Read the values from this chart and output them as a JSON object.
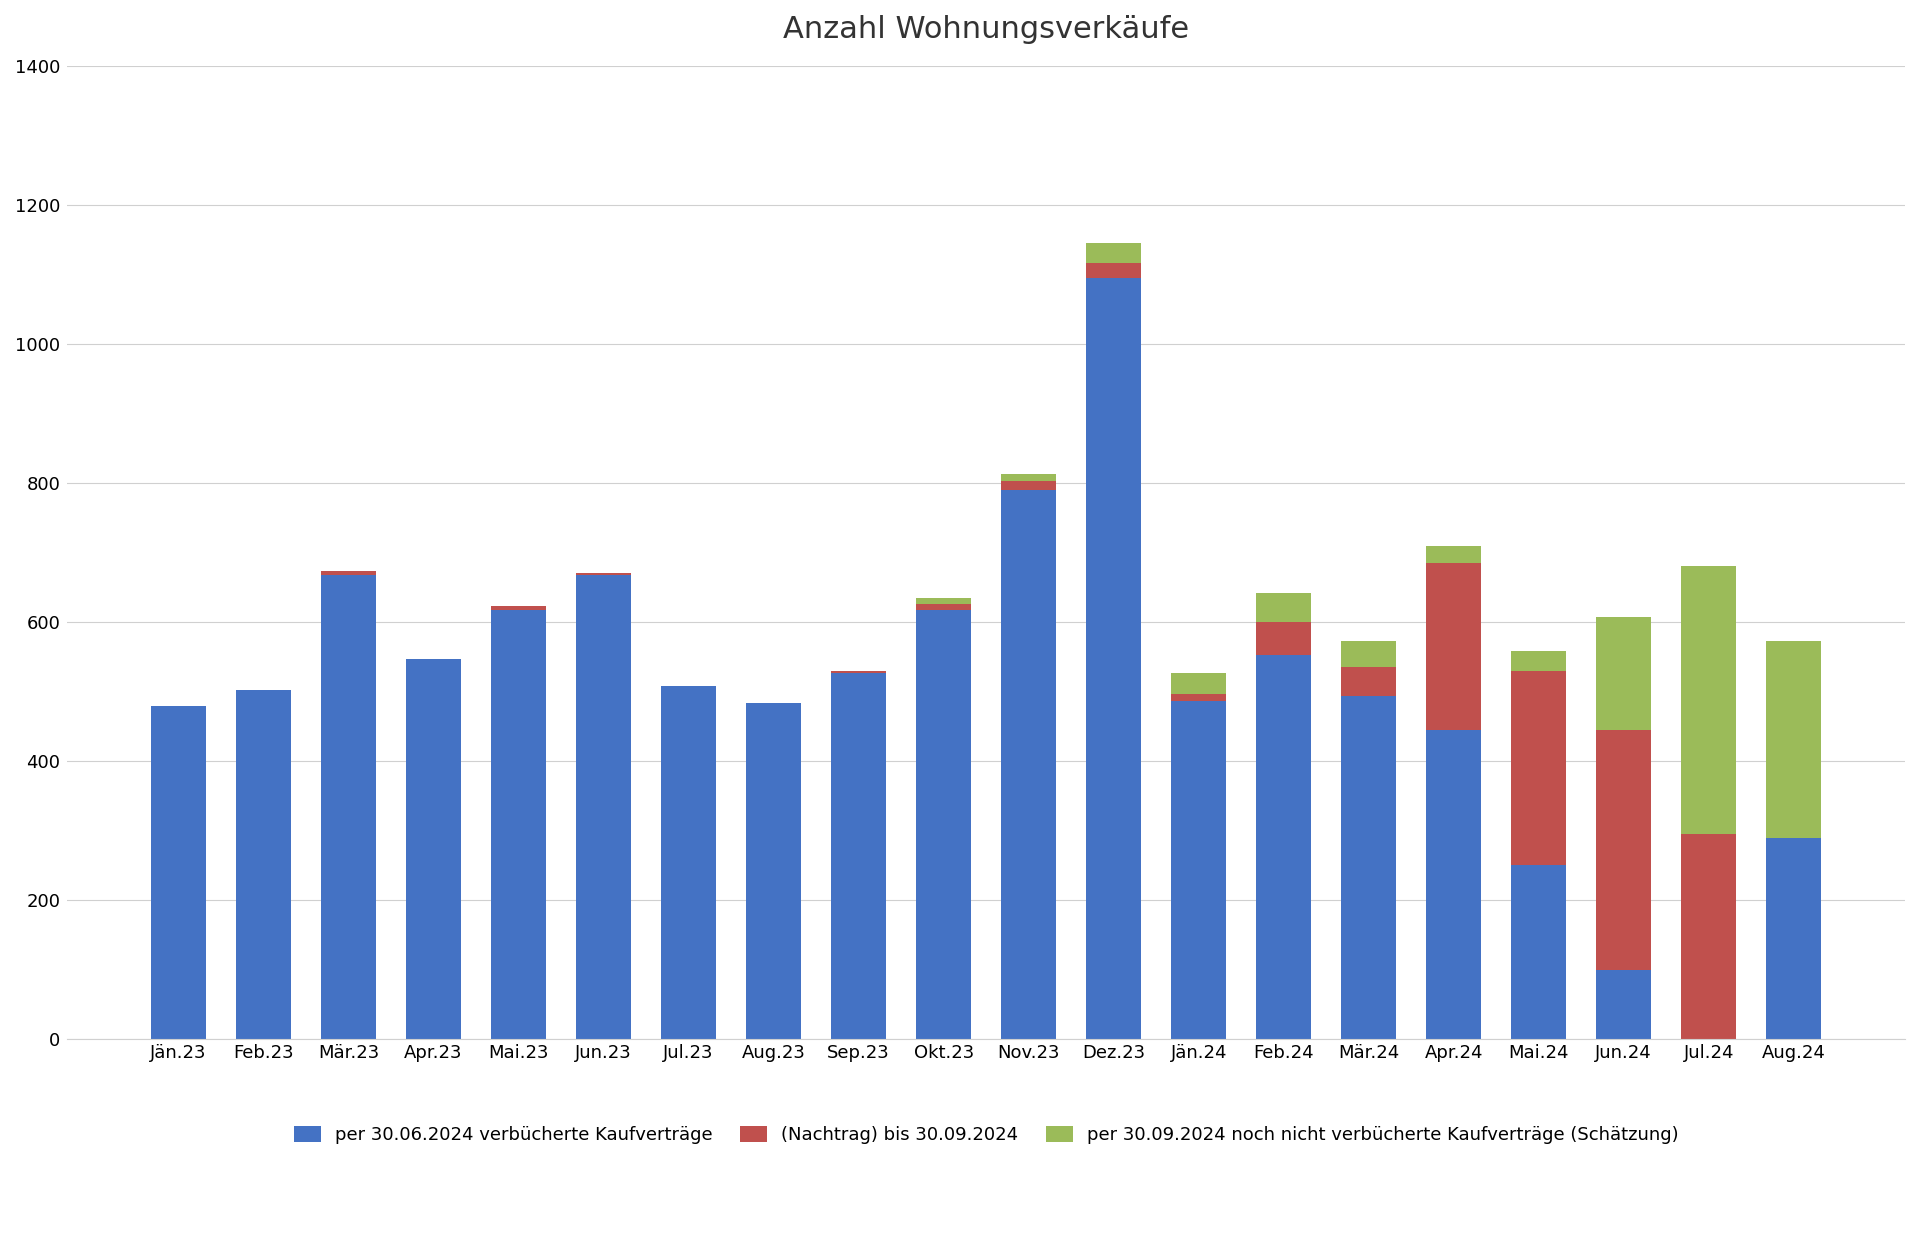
{
  "title": "Anzahl Wohnungsverkäufe",
  "categories": [
    "Jän.23",
    "Feb.23",
    "Mär.23",
    "Apr.23",
    "Mai.23",
    "Jun.23",
    "Jul.23",
    "Aug.23",
    "Sep.23",
    "Okt.23",
    "Nov.23",
    "Dez.23",
    "Jän.24",
    "Feb.24",
    "Mär.24",
    "Apr.24",
    "Mai.24",
    "Jun.24",
    "Jul.24",
    "Aug.24"
  ],
  "blue": [
    480,
    502,
    668,
    547,
    618,
    667,
    508,
    483,
    527,
    618,
    790,
    1095,
    487,
    553,
    493,
    445,
    250,
    100,
    0,
    290
  ],
  "red": [
    0,
    0,
    5,
    0,
    5,
    3,
    0,
    0,
    3,
    8,
    13,
    22,
    10,
    47,
    42,
    240,
    280,
    345,
    295,
    0
  ],
  "green": [
    0,
    0,
    0,
    0,
    0,
    0,
    0,
    0,
    0,
    8,
    10,
    28,
    30,
    42,
    38,
    25,
    28,
    162,
    385,
    283
  ],
  "blue_color": "#4472C4",
  "red_color": "#C0504D",
  "green_color": "#9BBB59",
  "ylim": [
    0,
    1400
  ],
  "yticks": [
    0,
    200,
    400,
    600,
    800,
    1000,
    1200,
    1400
  ],
  "legend": [
    "per 30.06.2024 verbücherte Kaufverträge",
    "(Nachtrag) bis 30.09.2024",
    "per 30.09.2024 noch nicht verbücherte Kaufverträge (Schätzung)"
  ],
  "figsize": [
    19.2,
    12.41
  ],
  "dpi": 100,
  "title_fontsize": 22,
  "tick_fontsize": 13,
  "legend_fontsize": 13,
  "bar_width": 0.65
}
